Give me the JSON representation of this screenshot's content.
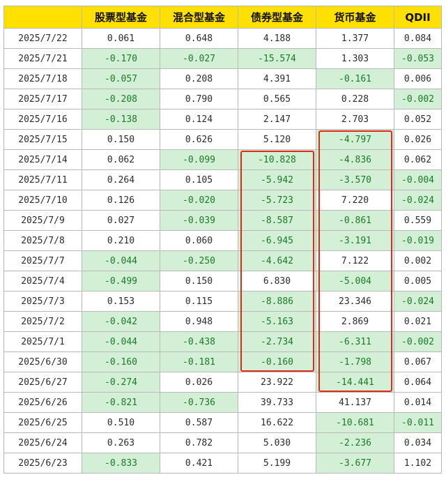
{
  "headers": [
    "",
    "股票型基金",
    "混合型基金",
    "债券型基金",
    "货币基金",
    "QDII"
  ],
  "rows": [
    {
      "date": "2025/7/22",
      "values": [
        "0.061",
        "0.648",
        "4.188",
        "1.377",
        "0.084"
      ]
    },
    {
      "date": "2025/7/21",
      "values": [
        "-0.170",
        "-0.027",
        "-15.574",
        "1.303",
        "-0.053"
      ]
    },
    {
      "date": "2025/7/18",
      "values": [
        "-0.057",
        "0.208",
        "4.391",
        "-0.161",
        "0.006"
      ]
    },
    {
      "date": "2025/7/17",
      "values": [
        "-0.208",
        "0.790",
        "0.565",
        "0.228",
        "-0.002"
      ]
    },
    {
      "date": "2025/7/16",
      "values": [
        "-0.138",
        "0.124",
        "2.147",
        "2.703",
        "0.052"
      ]
    },
    {
      "date": "2025/7/15",
      "values": [
        "0.150",
        "0.626",
        "5.120",
        "-4.797",
        "0.026"
      ]
    },
    {
      "date": "2025/7/14",
      "values": [
        "0.062",
        "-0.099",
        "-10.828",
        "-4.836",
        "0.062"
      ]
    },
    {
      "date": "2025/7/11",
      "values": [
        "0.264",
        "0.105",
        "-5.942",
        "-3.570",
        "-0.004"
      ]
    },
    {
      "date": "2025/7/10",
      "values": [
        "0.126",
        "-0.020",
        "-5.723",
        "7.220",
        "-0.024"
      ]
    },
    {
      "date": "2025/7/9",
      "values": [
        "0.027",
        "-0.039",
        "-8.587",
        "-0.861",
        "0.559"
      ]
    },
    {
      "date": "2025/7/8",
      "values": [
        "0.210",
        "0.060",
        "-6.945",
        "-3.191",
        "-0.019"
      ]
    },
    {
      "date": "2025/7/7",
      "values": [
        "-0.044",
        "-0.250",
        "-4.642",
        "7.122",
        "0.002"
      ]
    },
    {
      "date": "2025/7/4",
      "values": [
        "-0.499",
        "0.150",
        "6.830",
        "-5.004",
        "0.005"
      ]
    },
    {
      "date": "2025/7/3",
      "values": [
        "0.153",
        "0.115",
        "-8.886",
        "23.346",
        "-0.024"
      ]
    },
    {
      "date": "2025/7/2",
      "values": [
        "-0.042",
        "0.948",
        "-5.163",
        "2.869",
        "0.021"
      ]
    },
    {
      "date": "2025/7/1",
      "values": [
        "-0.044",
        "-0.438",
        "-2.734",
        "-6.311",
        "-0.002"
      ]
    },
    {
      "date": "2025/6/30",
      "values": [
        "-0.160",
        "-0.181",
        "-0.160",
        "-1.798",
        "0.067"
      ]
    },
    {
      "date": "2025/6/27",
      "values": [
        "-0.274",
        "0.026",
        "23.922",
        "-14.441",
        "0.064"
      ]
    },
    {
      "date": "2025/6/26",
      "values": [
        "-0.821",
        "-0.736",
        "39.733",
        "41.137",
        "0.014"
      ]
    },
    {
      "date": "2025/6/25",
      "values": [
        "0.510",
        "0.587",
        "16.622",
        "-10.681",
        "-0.011"
      ]
    },
    {
      "date": "2025/6/24",
      "values": [
        "0.263",
        "0.782",
        "5.030",
        "-2.236",
        "0.034"
      ]
    },
    {
      "date": "2025/6/23",
      "values": [
        "-0.833",
        "0.421",
        "5.199",
        "-3.677",
        "1.102"
      ]
    }
  ],
  "colors": {
    "header_bg": "#ffe000",
    "negative_bg": "#d3efd6",
    "negative_text": "#1a7a28",
    "highlight_border": "#e02a1a"
  },
  "highlights": [
    {
      "column": "债券型基金",
      "from_date": "2025/7/14",
      "to_date": "2025/6/30"
    },
    {
      "column": "货币基金",
      "from_date": "2025/7/15",
      "to_date": "2025/6/27"
    }
  ]
}
